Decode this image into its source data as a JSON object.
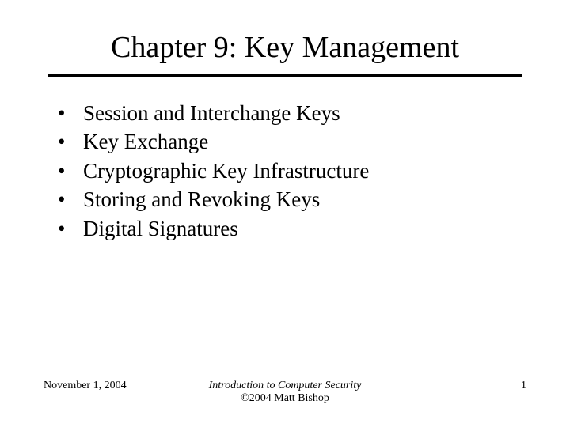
{
  "slide": {
    "title": "Chapter 9: Key Management",
    "bullets": [
      "Session and Interchange Keys",
      "Key Exchange",
      "Cryptographic Key Infrastructure",
      "Storing and Revoking Keys",
      "Digital Signatures"
    ],
    "footer": {
      "date": "November 1, 2004",
      "book_title": "Introduction to Computer Security",
      "copyright": "©2004 Matt Bishop",
      "page_number": "1"
    }
  },
  "style": {
    "background_color": "#ffffff",
    "text_color": "#000000",
    "font_family": "Times New Roman",
    "title_fontsize": 38,
    "bullet_fontsize": 27,
    "footer_fontsize": 14,
    "divider_color": "#000000",
    "divider_width": 3
  }
}
